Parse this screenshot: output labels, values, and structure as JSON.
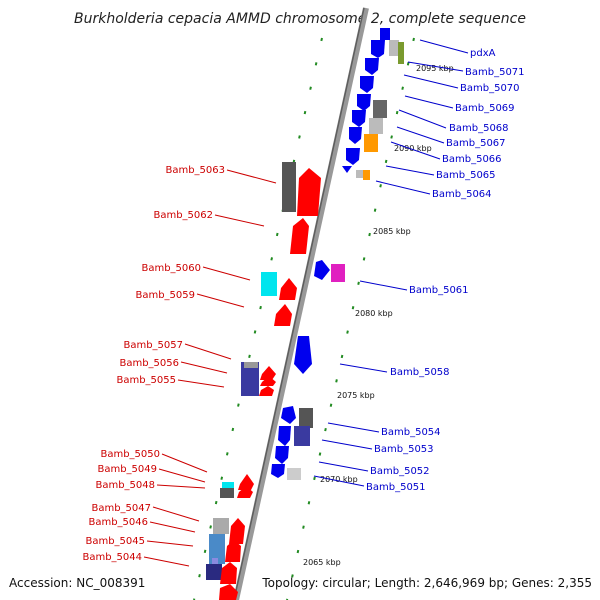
{
  "title": "Burkholderia cepacia AMMD chromosome 2, complete sequence",
  "accession": "Accession: NC_008391",
  "topology": "Topology: circular; Length: 2,646,969 bp; Genes: 2,355",
  "colors": {
    "left_label": "#cc0000",
    "right_label": "#0000cc",
    "tick": "#228b22",
    "backbone": "#999999"
  },
  "scale_labels": [
    "2095 kbp",
    "2090 kbp",
    "2085 kbp",
    "2080 kbp",
    "2075 kbp",
    "2070 kbp",
    "2065 kbp"
  ],
  "left_genes": [
    "Bamb_5063",
    "Bamb_5062",
    "Bamb_5060",
    "Bamb_5059",
    "Bamb_5057",
    "Bamb_5056",
    "Bamb_5055",
    "Bamb_5050",
    "Bamb_5049",
    "Bamb_5048",
    "Bamb_5047",
    "Bamb_5046",
    "Bamb_5045",
    "Bamb_5044"
  ],
  "right_genes": [
    "pdxA",
    "Bamb_5071",
    "Bamb_5070",
    "Bamb_5069",
    "Bamb_5068",
    "Bamb_5067",
    "Bamb_5066",
    "Bamb_5065",
    "Bamb_5064",
    "Bamb_5061",
    "Bamb_5058",
    "Bamb_5054",
    "Bamb_5053",
    "Bamb_5052",
    "Bamb_5051"
  ]
}
